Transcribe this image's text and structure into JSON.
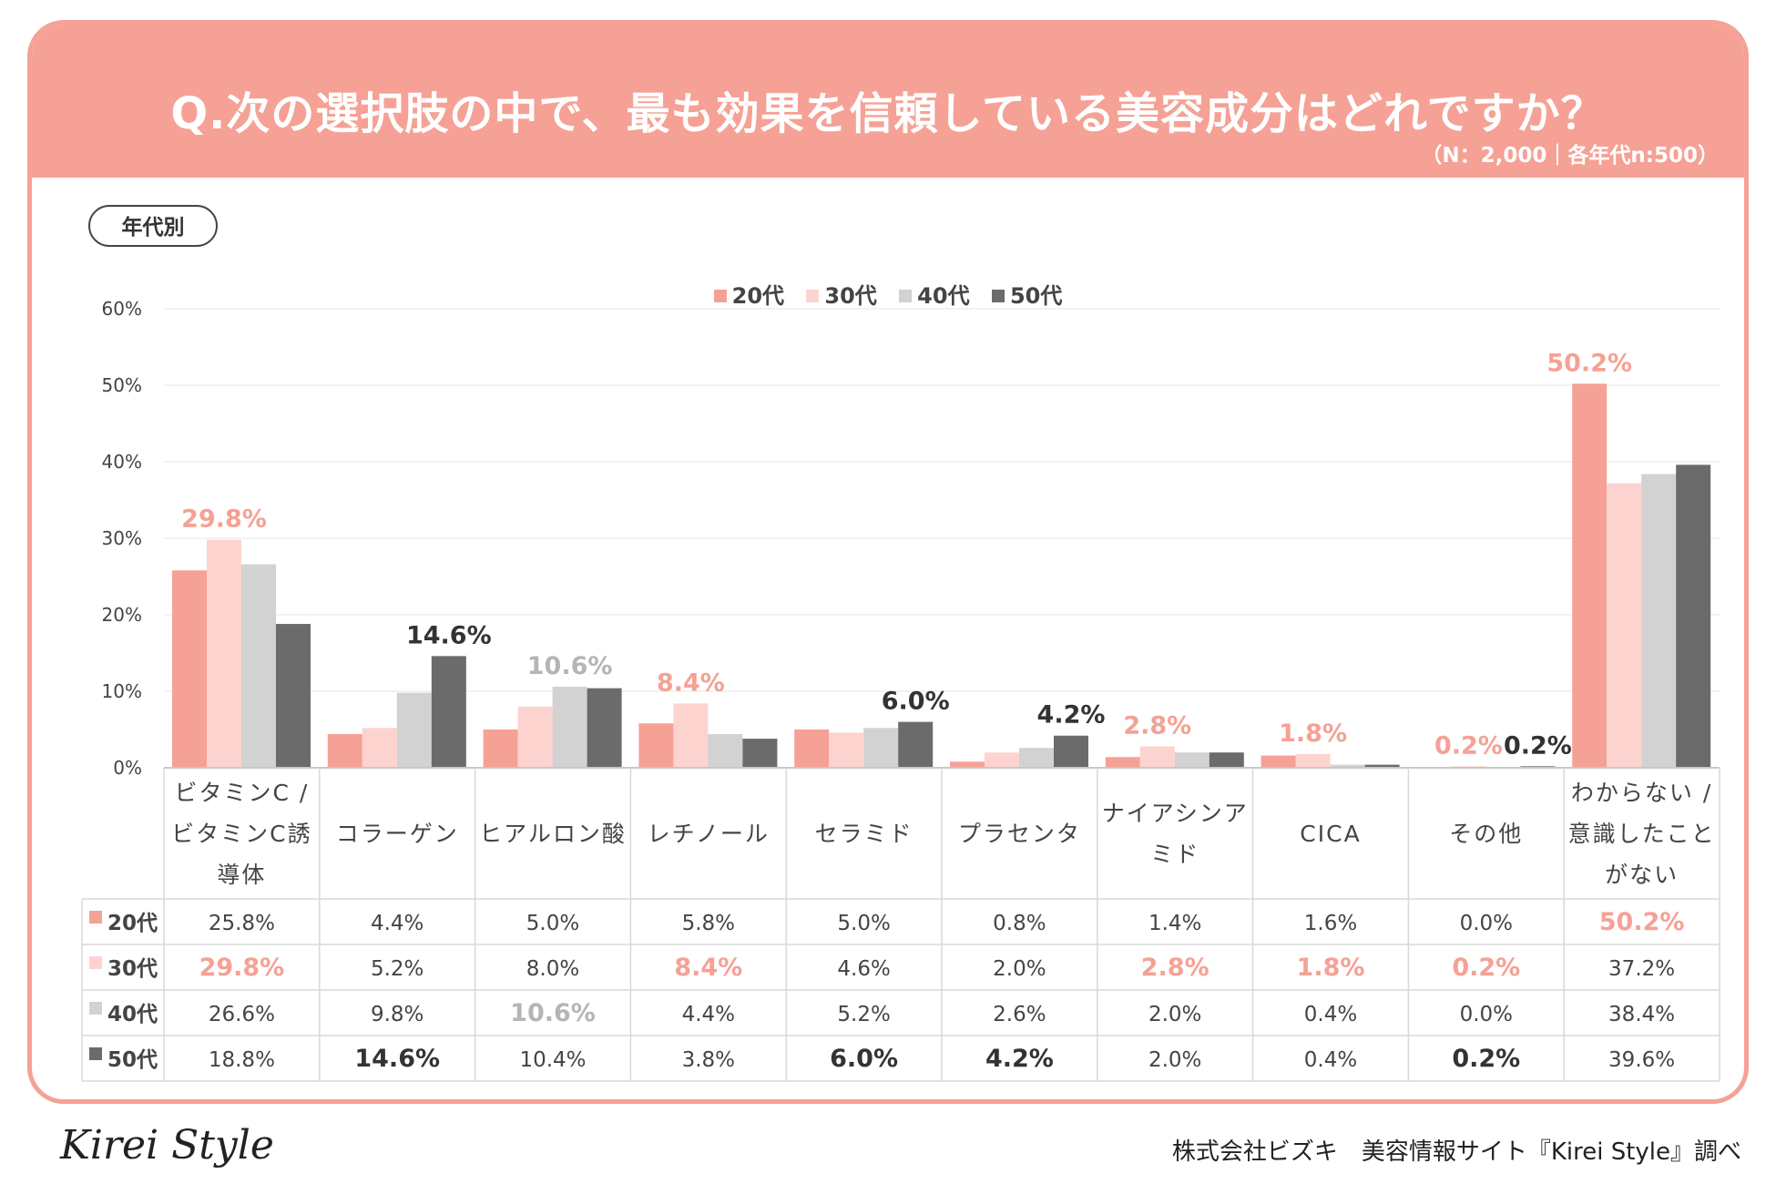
{
  "header": {
    "title": "Q.次の選択肢の中で、最も効果を信頼している美容成分はどれですか？",
    "sample_note": "（N：2,000｜各年代n:500）"
  },
  "tag": "年代別",
  "colors": {
    "s20": "#f5a195",
    "s30": "#fdd3cf",
    "s40": "#d2d2d2",
    "s50": "#6b6b6b",
    "grid": "#e6e6e6",
    "border": "#d8d8d8"
  },
  "legend": [
    "20代",
    "30代",
    "40代",
    "50代"
  ],
  "footer": {
    "logo": "Kirei Style",
    "credit": "株式会社ビズキ　美容情報サイト『Kirei Style』調べ"
  },
  "chart_data": {
    "type": "bar",
    "title": "Q.次の選択肢の中で、最も効果を信頼している美容成分はどれですか？",
    "ylim": [
      0,
      60
    ],
    "yticks": [
      "0%",
      "10%",
      "20%",
      "30%",
      "40%",
      "50%",
      "60%"
    ],
    "categories": [
      [
        "ビタミンC /",
        "ビタミンC誘",
        "導体"
      ],
      [
        "コラーゲン"
      ],
      [
        "ヒアルロン酸"
      ],
      [
        "レチノール"
      ],
      [
        "セラミド"
      ],
      [
        "プラセンタ"
      ],
      [
        "ナイアシンア",
        "ミド"
      ],
      [
        "CICA"
      ],
      [
        "その他"
      ],
      [
        "わからない /",
        "意識したこと",
        "がない"
      ]
    ],
    "series": [
      {
        "name": "20代",
        "values": [
          25.8,
          4.4,
          5.0,
          5.8,
          5.0,
          0.8,
          1.4,
          1.6,
          0.0,
          50.2
        ],
        "labels": [
          "25.8%",
          "4.4%",
          "5.0%",
          "5.8%",
          "5.0%",
          "0.8%",
          "1.4%",
          "1.6%",
          "0.0%",
          "50.2%"
        ]
      },
      {
        "name": "30代",
        "values": [
          29.8,
          5.2,
          8.0,
          8.4,
          4.6,
          2.0,
          2.8,
          1.8,
          0.2,
          37.2
        ],
        "labels": [
          "29.8%",
          "5.2%",
          "8.0%",
          "8.4%",
          "4.6%",
          "2.0%",
          "2.8%",
          "1.8%",
          "0.2%",
          "37.2%"
        ]
      },
      {
        "name": "40代",
        "values": [
          26.6,
          9.8,
          10.6,
          4.4,
          5.2,
          2.6,
          2.0,
          0.4,
          0.0,
          38.4
        ],
        "labels": [
          "26.6%",
          "9.8%",
          "10.6%",
          "4.4%",
          "5.2%",
          "2.6%",
          "2.0%",
          "0.4%",
          "0.0%",
          "38.4%"
        ]
      },
      {
        "name": "50代",
        "values": [
          18.8,
          14.6,
          10.4,
          3.8,
          6.0,
          4.2,
          2.0,
          0.4,
          0.2,
          39.6
        ],
        "labels": [
          "18.8%",
          "14.6%",
          "10.4%",
          "3.8%",
          "6.0%",
          "4.2%",
          "2.0%",
          "0.4%",
          "0.2%",
          "39.6%"
        ]
      }
    ],
    "highlights": [
      {
        "cat": 0,
        "series": 1,
        "label": "29.8%"
      },
      {
        "cat": 1,
        "series": 3,
        "label": "14.6%"
      },
      {
        "cat": 2,
        "series": 2,
        "label": "10.6%"
      },
      {
        "cat": 3,
        "series": 1,
        "label": "8.4%"
      },
      {
        "cat": 4,
        "series": 3,
        "label": "6.0%"
      },
      {
        "cat": 5,
        "series": 3,
        "label": "4.2%"
      },
      {
        "cat": 6,
        "series": 1,
        "label": "2.8%"
      },
      {
        "cat": 7,
        "series": 1,
        "label": "1.8%"
      },
      {
        "cat": 8,
        "series": 1,
        "label": "0.2%"
      },
      {
        "cat": 8,
        "series": 3,
        "label": "0.2%"
      },
      {
        "cat": 9,
        "series": 0,
        "label": "50.2%"
      }
    ]
  }
}
